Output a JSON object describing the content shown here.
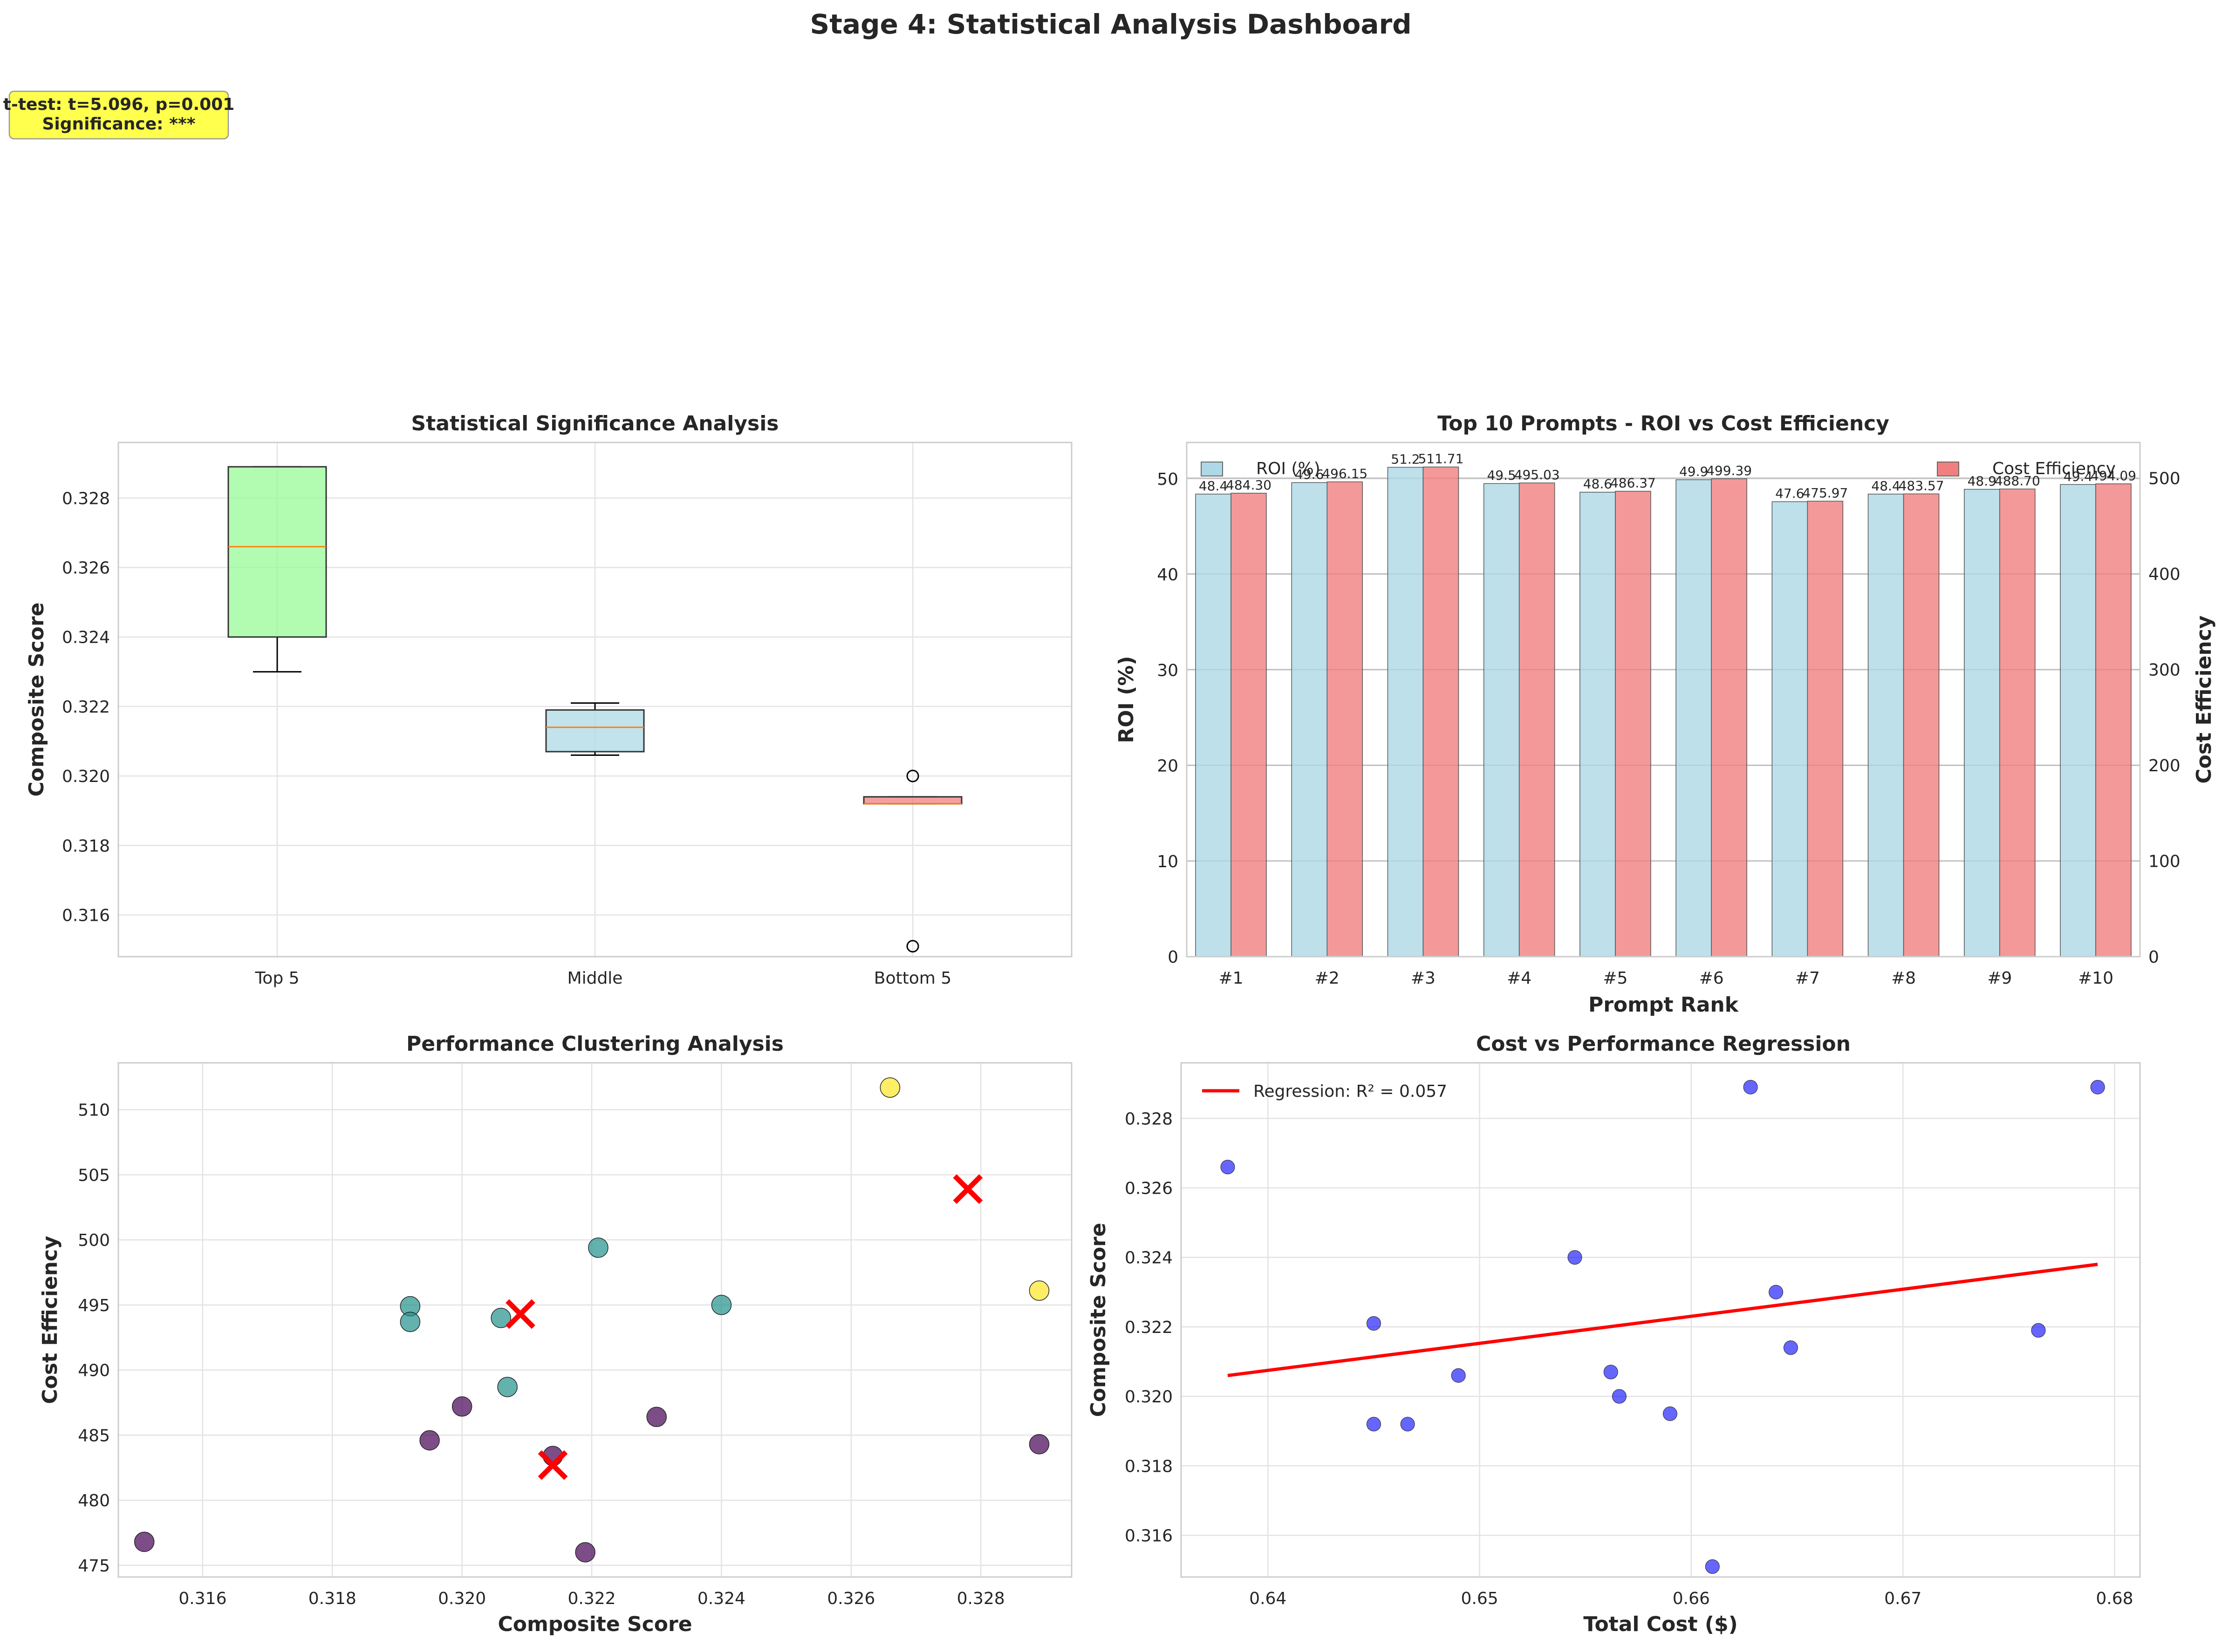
{
  "dashboard_title": "Stage 4: Statistical Analysis Dashboard",
  "stat_box": {
    "line1": "t-test: t=5.096, p=0.001",
    "line2": "Significance: ***",
    "bg_color": "#ffff4d"
  },
  "chart_data": [
    {
      "type": "box",
      "title": "Statistical Significance Analysis",
      "xlabel": "",
      "ylabel": "Composite Score",
      "categories": [
        "Top 5",
        "Middle",
        "Bottom 5"
      ],
      "ylim": [
        0.3148,
        0.3296
      ],
      "yticks": [
        0.316,
        0.318,
        0.32,
        0.322,
        0.324,
        0.326,
        0.328
      ],
      "ytick_labels": [
        "0.316",
        "0.318",
        "0.320",
        "0.322",
        "0.324",
        "0.326",
        "0.328"
      ],
      "boxes": [
        {
          "whisker_low": 0.323,
          "q1": 0.324,
          "median": 0.3266,
          "q3": 0.3289,
          "whisker_high": 0.3289,
          "fliers": [],
          "color": "#98fb98"
        },
        {
          "whisker_low": 0.3206,
          "q1": 0.3207,
          "median": 0.3214,
          "q3": 0.3219,
          "whisker_high": 0.3221,
          "fliers": [],
          "color": "#add8e6"
        },
        {
          "whisker_low": 0.3192,
          "q1": 0.3192,
          "median": 0.3192,
          "q3": 0.3194,
          "whisker_high": 0.3194,
          "fliers": [
            0.32,
            0.3151
          ],
          "color": "#f08080"
        }
      ],
      "median_color": "#ff7f0e",
      "grid": true
    },
    {
      "type": "bar",
      "title": "Top 10 Prompts - ROI vs Cost Efficiency",
      "xlabel": "Prompt Rank",
      "ylabel": "ROI (%)",
      "ylabel_right": "Cost Efficiency",
      "ylabel_color": "#0000ff",
      "ylabel_right_color": "#ff0000",
      "categories": [
        "#1",
        "#2",
        "#3",
        "#4",
        "#5",
        "#6",
        "#7",
        "#8",
        "#9",
        "#10"
      ],
      "ylim": [
        0,
        53.8
      ],
      "ylim_right": [
        0,
        537.3
      ],
      "yticks": [
        0,
        10,
        20,
        30,
        40,
        50
      ],
      "yticks_right": [
        0,
        100,
        200,
        300,
        400,
        500
      ],
      "series": [
        {
          "name": "ROI (%)",
          "axis": "left",
          "color": "#add8e6",
          "values": [
            48.4,
            49.6,
            51.2,
            49.5,
            48.6,
            49.9,
            47.6,
            48.4,
            48.9,
            49.4
          ],
          "labels": [
            "48.4",
            "49.6",
            "51.2",
            "49.5",
            "48.6",
            "49.9",
            "47.6",
            "48.4",
            "48.9",
            "49.4"
          ]
        },
        {
          "name": "Cost Efficiency",
          "axis": "right",
          "color": "#f08080",
          "values": [
            484.3,
            496.15,
            511.71,
            495.03,
            486.37,
            499.39,
            475.97,
            483.57,
            488.7,
            494.09
          ],
          "labels": [
            "484.30",
            "496.15",
            "511.71",
            "495.03",
            "486.37",
            "499.39",
            "475.97",
            "483.57",
            "488.70",
            "494.09"
          ]
        }
      ],
      "legend": [
        "upper-left",
        "upper-right"
      ],
      "grid": true
    },
    {
      "type": "scatter",
      "title": "Performance Clustering Analysis",
      "xlabel": "Composite Score",
      "ylabel": "Cost Efficiency",
      "xlim": [
        0.3147,
        0.3294
      ],
      "ylim": [
        474.1,
        513.6
      ],
      "xticks": [
        0.316,
        0.318,
        0.32,
        0.322,
        0.324,
        0.326,
        0.328
      ],
      "xtick_labels": [
        "0.316",
        "0.318",
        "0.320",
        "0.322",
        "0.324",
        "0.326",
        "0.328"
      ],
      "yticks": [
        475,
        480,
        485,
        490,
        495,
        500,
        505,
        510
      ],
      "cluster_colors": [
        "#440154",
        "#21918c",
        "#fde725"
      ],
      "points": [
        {
          "x": 0.3151,
          "y": 476.8,
          "cluster": 0
        },
        {
          "x": 0.3195,
          "y": 484.6,
          "cluster": 0
        },
        {
          "x": 0.32,
          "y": 487.2,
          "cluster": 0
        },
        {
          "x": 0.3214,
          "y": 483.4,
          "cluster": 0
        },
        {
          "x": 0.3219,
          "y": 476.0,
          "cluster": 0
        },
        {
          "x": 0.323,
          "y": 486.4,
          "cluster": 0
        },
        {
          "x": 0.3289,
          "y": 484.3,
          "cluster": 0
        },
        {
          "x": 0.3192,
          "y": 494.9,
          "cluster": 1
        },
        {
          "x": 0.3192,
          "y": 493.7,
          "cluster": 1
        },
        {
          "x": 0.3206,
          "y": 494.0,
          "cluster": 1
        },
        {
          "x": 0.3207,
          "y": 488.7,
          "cluster": 1
        },
        {
          "x": 0.3221,
          "y": 499.4,
          "cluster": 1
        },
        {
          "x": 0.324,
          "y": 495.0,
          "cluster": 1
        },
        {
          "x": 0.3266,
          "y": 511.7,
          "cluster": 2
        },
        {
          "x": 0.3289,
          "y": 496.1,
          "cluster": 2
        }
      ],
      "centroids": [
        {
          "x": 0.3214,
          "y": 482.7
        },
        {
          "x": 0.3209,
          "y": 494.3
        },
        {
          "x": 0.3278,
          "y": 503.9
        }
      ],
      "centroid_color": "#ff0000",
      "grid": true
    },
    {
      "type": "scatter",
      "title": "Cost vs Performance Regression",
      "xlabel": "Total Cost ($)",
      "ylabel": "Composite Score",
      "xlim": [
        0.6359,
        0.6812
      ],
      "ylim": [
        0.3148,
        0.3296
      ],
      "xticks": [
        0.64,
        0.65,
        0.66,
        0.67,
        0.68
      ],
      "xtick_labels": [
        "0.64",
        "0.65",
        "0.66",
        "0.67",
        "0.68"
      ],
      "yticks": [
        0.316,
        0.318,
        0.32,
        0.322,
        0.324,
        0.326,
        0.328
      ],
      "ytick_labels": [
        "0.316",
        "0.318",
        "0.320",
        "0.322",
        "0.324",
        "0.326",
        "0.328"
      ],
      "point_color": "#0000ff",
      "points": [
        {
          "x": 0.6381,
          "y": 0.3266
        },
        {
          "x": 0.645,
          "y": 0.3221
        },
        {
          "x": 0.645,
          "y": 0.3192
        },
        {
          "x": 0.6466,
          "y": 0.3192
        },
        {
          "x": 0.649,
          "y": 0.3206
        },
        {
          "x": 0.6545,
          "y": 0.324
        },
        {
          "x": 0.6562,
          "y": 0.3207
        },
        {
          "x": 0.6566,
          "y": 0.32
        },
        {
          "x": 0.659,
          "y": 0.3195
        },
        {
          "x": 0.661,
          "y": 0.3151
        },
        {
          "x": 0.6628,
          "y": 0.3289
        },
        {
          "x": 0.664,
          "y": 0.323
        },
        {
          "x": 0.6647,
          "y": 0.3214
        },
        {
          "x": 0.6764,
          "y": 0.3219
        },
        {
          "x": 0.6792,
          "y": 0.3289
        }
      ],
      "regression": {
        "label": "Regression: R² = 0.057",
        "x": [
          0.6381,
          0.6792
        ],
        "y": [
          0.3206,
          0.3238
        ],
        "color": "#ff0000"
      },
      "legend": "upper-left",
      "grid": true
    }
  ]
}
